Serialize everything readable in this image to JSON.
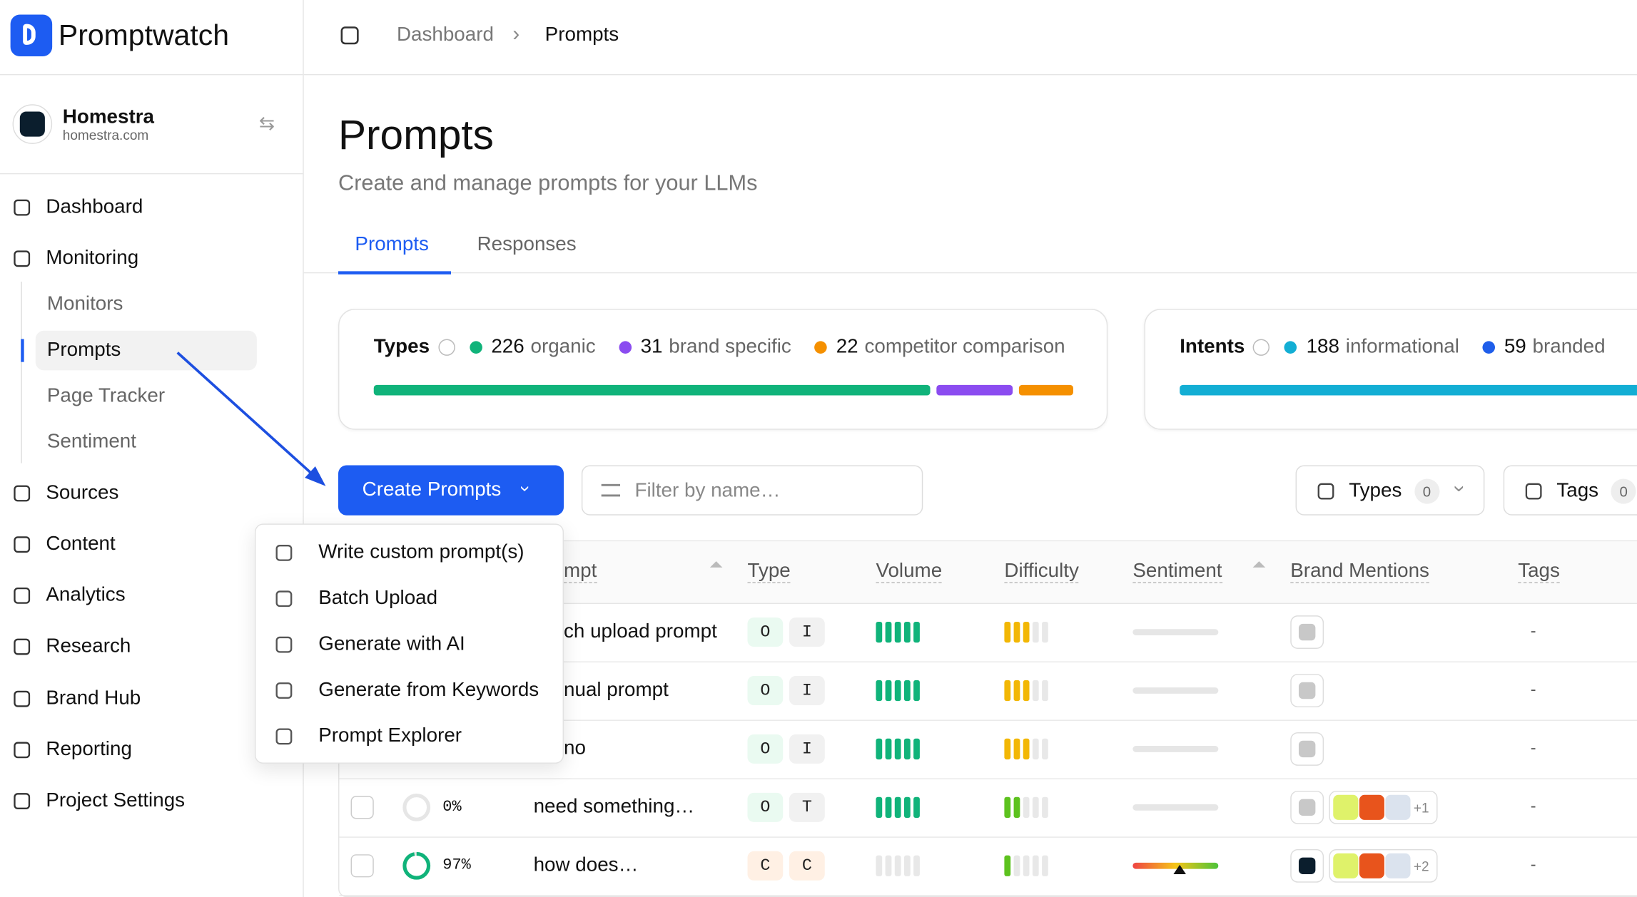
{
  "sidebar": {
    "brand": "Promptwatch",
    "project": {
      "name": "Homestra",
      "domain": "homestra.com"
    },
    "nav": [
      {
        "label": "Dashboard"
      },
      {
        "label": "Monitoring",
        "children": [
          "Monitors",
          "Prompts",
          "Page Tracker",
          "Sentiment"
        ]
      },
      {
        "label": "Sources"
      },
      {
        "label": "Content"
      },
      {
        "label": "Analytics"
      },
      {
        "label": "Research"
      },
      {
        "label": "Brand Hub"
      },
      {
        "label": "Reporting"
      },
      {
        "label": "Project Settings"
      }
    ]
  },
  "breadcrumb": [
    "Dashboard",
    "Prompts"
  ],
  "header": {
    "title": "Prompts",
    "subtitle": "Create and manage prompts for your LLMs"
  },
  "tabs": [
    "Prompts",
    "Responses"
  ],
  "summary": [
    {
      "label": "Types",
      "items": [
        {
          "count": 226,
          "label": "organic",
          "color": "#10b37a"
        },
        {
          "count": 31,
          "label": "brand specific",
          "color": "#8b4cf0"
        },
        {
          "count": 22,
          "label": "competitor comparison",
          "color": "#f59000"
        }
      ]
    },
    {
      "label": "Intents",
      "items": [
        {
          "count": 188,
          "label": "informational",
          "color": "#13aed4"
        },
        {
          "count": 59,
          "label": "branded",
          "color": "#1f5eea"
        }
      ]
    }
  ],
  "toolbar": {
    "create": "Create Prompts",
    "filter_placeholder": "Filter by name…",
    "filters": [
      {
        "label": "Types",
        "count": 0
      },
      {
        "label": "Tags",
        "count": 0
      }
    ]
  },
  "menu": [
    "Write custom prompt(s)",
    "Batch Upload",
    "Generate with AI",
    "Generate from Keywords",
    "Prompt Explorer"
  ],
  "table": {
    "columns": [
      "mpt",
      "Type",
      "Volume",
      "Difficulty",
      "Sentiment",
      "Brand Mentions",
      "Tags"
    ],
    "rows": [
      {
        "prompt": "ch upload prompt",
        "types": [
          "O",
          "I"
        ],
        "volume": 5,
        "difficulty": 3,
        "tags": "-"
      },
      {
        "prompt": "nual prompt",
        "types": [
          "O",
          "I"
        ],
        "volume": 5,
        "difficulty": 3,
        "tags": "-"
      },
      {
        "prompt": "no",
        "types": [
          "O",
          "I"
        ],
        "volume": 5,
        "difficulty": 3,
        "tags": "-"
      },
      {
        "visibility": 0,
        "visibility_label": "0%",
        "prompt": "need something…",
        "types": [
          "O",
          "T"
        ],
        "volume": 5,
        "difficulty": 2,
        "brands_extra": "+1",
        "tags": "-"
      },
      {
        "visibility": 97,
        "visibility_label": "97%",
        "prompt": "how does…",
        "types": [
          "C",
          "C"
        ],
        "volume": 0,
        "difficulty": 1,
        "sentiment": 55,
        "brands_extra": "+2",
        "tags": "-"
      }
    ]
  }
}
